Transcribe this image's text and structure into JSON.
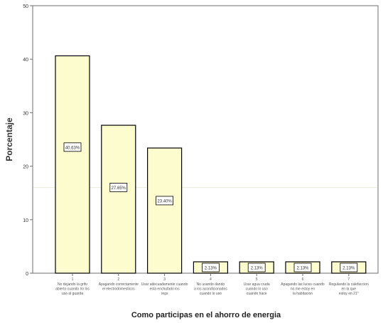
{
  "chart_data": {
    "type": "bar",
    "xlabel": "Como participas en el ahorro de energia",
    "ylabel": "Porcentaje",
    "ylim": [
      0,
      50
    ],
    "yticks": [
      0,
      10,
      20,
      30,
      40,
      50
    ],
    "grid": false,
    "colors": {
      "bar_fill": "#fdfccf",
      "bar_stroke": "#000000",
      "frame": "#6f6f6f",
      "plot_bg": "#ffffff",
      "text": "#333333",
      "ref_line": "#ecebd9"
    },
    "categories": [
      "No dejando la grifo abierto cuando no los uso al guarda",
      "Apagando correctamente el electrodomesticos",
      "Usar adecuadamente cuando esta enchufado los regs",
      "No usando dando a los acondicionados cuando lo uso",
      "Usar agua cruda cuando lo uso cuando hace",
      "Apagando las luces cuando no me estoy en la habitacion",
      "Regulando la calefaccion en la que estoy en 21°"
    ],
    "tick_numbers": [
      "1",
      "2",
      "3",
      "4",
      "5",
      "6",
      "7"
    ],
    "values": [
      40.63,
      27.65,
      23.4,
      2.13,
      2.13,
      2.13,
      2.13
    ],
    "data_labels": [
      "40.63%",
      "27.65%",
      "23.40%",
      "2.13%",
      "2.13%",
      "2.13%",
      "2.13%"
    ],
    "ref_line_value": 16
  }
}
